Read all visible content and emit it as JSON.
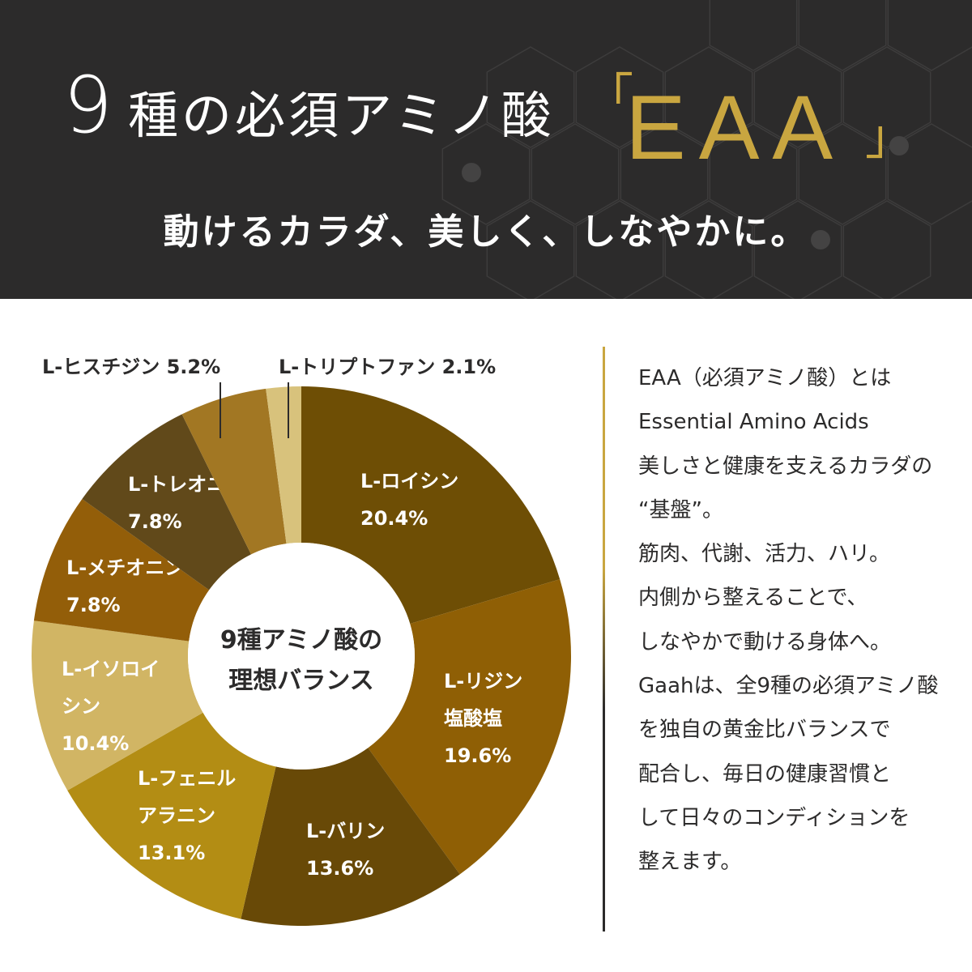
{
  "header": {
    "title_number": "9",
    "title_text": "種の必須アミノ酸",
    "bracket_open": "「",
    "eaa": "EAA",
    "bracket_close": "」",
    "subtitle": "動けるカラダ、美しく、しなやかに。"
  },
  "chart_data": {
    "type": "pie",
    "center_label": [
      "9種アミノ酸の",
      "理想バランス"
    ],
    "slices": [
      {
        "name": "L-ロイシン",
        "label_lines": [
          "L-ロイシン",
          "20.4%"
        ],
        "value": 20.4,
        "color": "#6e4e05"
      },
      {
        "name": "L-リジン塩酸塩",
        "label_lines": [
          "L-リジン",
          "塩酸塩",
          "19.6%"
        ],
        "value": 19.6,
        "color": "#8f5f05"
      },
      {
        "name": "L-バリン",
        "label_lines": [
          "L-バリン",
          "13.6%"
        ],
        "value": 13.6,
        "color": "#684907"
      },
      {
        "name": "L-フェニルアラニン",
        "label_lines": [
          "L-フェニル",
          "アラニン",
          "13.1%"
        ],
        "value": 13.1,
        "color": "#b38d14"
      },
      {
        "name": "L-イソロイシン",
        "label_lines": [
          "L-イソロイ",
          "シン",
          "10.4%"
        ],
        "value": 10.4,
        "color": "#d1b564"
      },
      {
        "name": "L-メチオニン",
        "label_lines": [
          "L-メチオニン",
          "7.8%"
        ],
        "value": 7.8,
        "color": "#935e09"
      },
      {
        "name": "L-トレオニン",
        "label_lines": [
          "L-トレオニン",
          "7.8%"
        ],
        "value": 7.8,
        "color": "#61491a"
      },
      {
        "name": "L-ヒスチジン",
        "label_lines": [
          "L-ヒスチジン 5.2%"
        ],
        "value": 5.2,
        "color": "#a27723",
        "external": true
      },
      {
        "name": "L-トリプトファン",
        "label_lines": [
          "L-トリプトファン 2.1%"
        ],
        "value": 2.1,
        "color": "#d8c27c",
        "external": true
      }
    ]
  },
  "description": {
    "lines": [
      "EAA（必須アミノ酸）とは",
      "Essential Amino Acids",
      "美しさと健康を支えるカラダの",
      "“基盤”。",
      "筋肉、代謝、活力、ハリ。",
      "内側から整えることで、",
      "しなやかで動ける身体へ。",
      "Gaahは、全9種の必須アミノ酸",
      "を独自の黄金比バランスで",
      "配合し、毎日の健康習慣と",
      "して日々のコンディションを",
      "整えます。"
    ]
  },
  "colors": {
    "header_bg": "#2c2b2b",
    "gold": "#c9a640",
    "text_dark": "#2c2b2b"
  }
}
